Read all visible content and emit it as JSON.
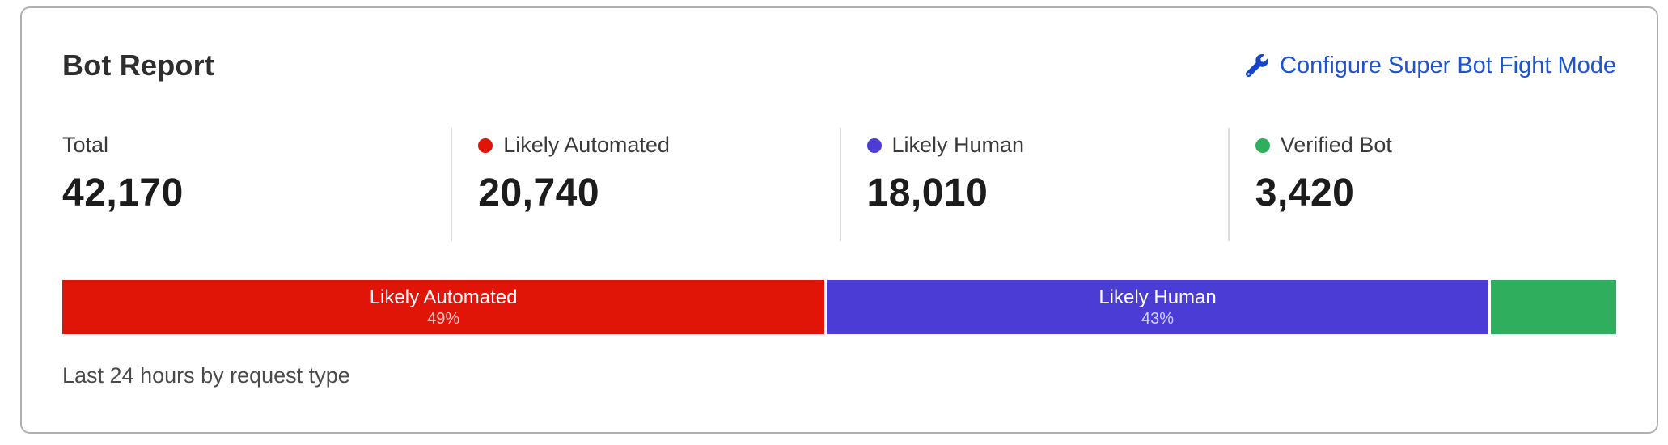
{
  "card": {
    "title": "Bot Report",
    "action_label": "Configure Super Bot Fight Mode"
  },
  "stats": [
    {
      "label": "Total",
      "value": "42,170",
      "color": null
    },
    {
      "label": "Likely Automated",
      "value": "20,740",
      "color": "#e11408"
    },
    {
      "label": "Likely Human",
      "value": "18,010",
      "color": "#4a3cd4"
    },
    {
      "label": "Verified Bot",
      "value": "3,420",
      "color": "#2fae5d"
    }
  ],
  "caption": "Last 24 hours by request type",
  "colors": {
    "link_blue": "#1d55d0",
    "card_border": "#b0b0b0",
    "divider": "#dcdcdc",
    "likely_automated": "#e11408",
    "likely_human": "#4a3cd4",
    "verified_bot": "#2fae5d"
  },
  "chart_data": {
    "type": "bar",
    "variant": "horizontal-stacked",
    "title": "Bot Report",
    "caption": "Last 24 hours by request type",
    "total": 42170,
    "categories": [
      "Likely Automated",
      "Likely Human",
      "Verified Bot"
    ],
    "values": [
      20740,
      18010,
      3420
    ],
    "segments": [
      {
        "name": "Likely Automated",
        "value": 20740,
        "pct_label": "49%",
        "width_pct": 49.2,
        "color": "#e11408",
        "show_label": true
      },
      {
        "name": "Likely Human",
        "value": 18010,
        "pct_label": "43%",
        "width_pct": 42.7,
        "color": "#4a3cd4",
        "show_label": true
      },
      {
        "name": "Verified Bot",
        "value": 3420,
        "pct_label": "",
        "width_pct": 8.1,
        "color": "#2fae5d",
        "show_label": false
      }
    ],
    "legend_position": "top",
    "grid": false
  }
}
